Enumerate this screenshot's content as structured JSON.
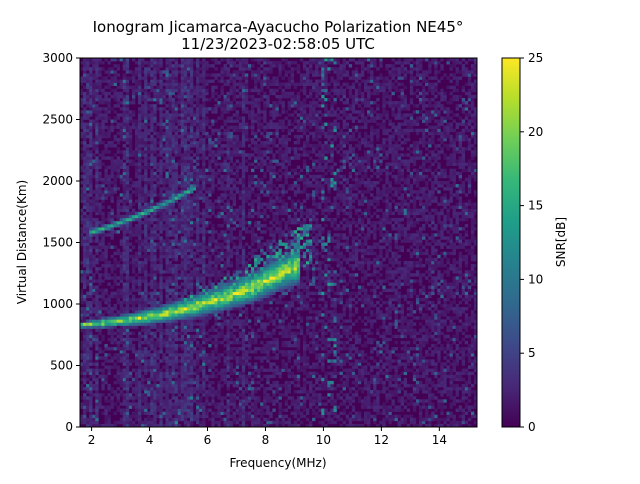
{
  "chart_data": {
    "type": "heatmap",
    "title_line1": "Ionogram Jicamarca-Ayacucho Polarization NE45°",
    "title_line2": "11/23/2023-02:58:05 UTC",
    "xlabel": "Frequency(MHz)",
    "ylabel": "Virtual Distance(Km)",
    "colorbar_label": "SNR[dB]",
    "xlim": [
      1.6,
      15.3
    ],
    "ylim": [
      0,
      3000
    ],
    "zlim": [
      0,
      25
    ],
    "x_ticks": [
      2,
      4,
      6,
      8,
      10,
      12,
      14
    ],
    "x_tick_labels": [
      "2",
      "4",
      "6",
      "8",
      "10",
      "12",
      "14"
    ],
    "y_ticks": [
      0,
      500,
      1000,
      1500,
      2000,
      2500,
      3000
    ],
    "y_tick_labels": [
      "0",
      "500",
      "1000",
      "1500",
      "2000",
      "2500",
      "3000"
    ],
    "colorbar_ticks": [
      0,
      5,
      10,
      15,
      20,
      25
    ],
    "colorbar_tick_labels": [
      "0",
      "5",
      "10",
      "15",
      "20",
      "25"
    ],
    "colormap": "viridis",
    "colormap_stops": [
      "#440154",
      "#482878",
      "#3e4989",
      "#31688e",
      "#26828e",
      "#1f9e89",
      "#35b779",
      "#6ece58",
      "#b5de2b",
      "#fde725"
    ],
    "traces": [
      {
        "name_hint": "F-layer first hop",
        "x": [
          1.6,
          2.5,
          3.5,
          4.5,
          5.5,
          6.5,
          7.5,
          8.5,
          9.2
        ],
        "y": [
          830,
          850,
          880,
          920,
          980,
          1050,
          1130,
          1250,
          1320
        ],
        "snr": 23
      },
      {
        "name_hint": "second hop",
        "x": [
          1.9,
          2.5,
          3.2,
          4.0,
          4.8,
          5.6
        ],
        "y": [
          1580,
          1620,
          1680,
          1760,
          1850,
          1950
        ],
        "snr": 16
      },
      {
        "name_hint": "spread echo region",
        "x_range": [
          4.0,
          9.6
        ],
        "y_range": [
          800,
          1600
        ],
        "snr": 13
      }
    ]
  }
}
